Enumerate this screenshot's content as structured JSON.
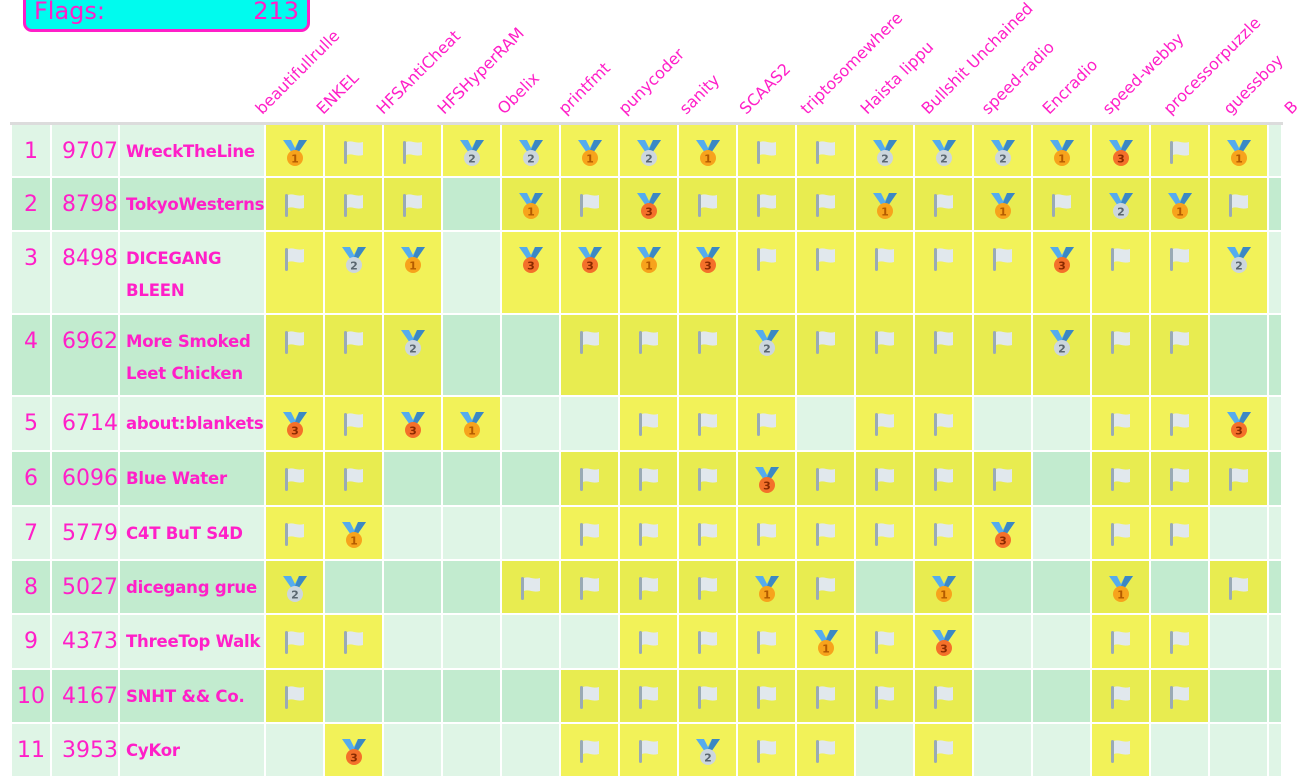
{
  "summary": {
    "flags_label": "Flags:",
    "flags_count": "213"
  },
  "colors": {
    "accent": "#ff1fc8",
    "box": "#00fbee",
    "row_odd": "#dff5e6",
    "row_even": "#c2ebcf",
    "solved_odd": "#f2f259",
    "solved_even": "#e8ec50"
  },
  "challenges": [
    "beautifullrulle",
    "ENKEL",
    "HFSAntiCheat",
    "HFSHyperRAM",
    "Obelix",
    "printfmt",
    "punycoder",
    "sanity",
    "SCAAS2",
    "triptosomewhere",
    "Haista lippu",
    "Bullshit Unchained",
    "speed-radio",
    "Encradio",
    "speed-webby",
    "processorpuzzle",
    "guessboy",
    "B"
  ],
  "legend": {
    "1": "gold-medal-icon",
    "2": "silver-medal-icon",
    "3": "bronze-medal-icon",
    "F": "flag-icon",
    "": "unsolved"
  },
  "teams": [
    {
      "rank": "1",
      "score": "9707",
      "name": "WreckTheLine",
      "solves": [
        "1",
        "F",
        "F",
        "2",
        "2",
        "1",
        "2",
        "1",
        "F",
        "F",
        "2",
        "2",
        "2",
        "1",
        "3",
        "F",
        "1",
        ""
      ]
    },
    {
      "rank": "2",
      "score": "8798",
      "name": "TokyoWesterns",
      "solves": [
        "F",
        "F",
        "F",
        "",
        "1",
        "F",
        "3",
        "F",
        "F",
        "F",
        "1",
        "F",
        "1",
        "F",
        "2",
        "1",
        "F",
        ""
      ]
    },
    {
      "rank": "3",
      "score": "8498",
      "name": "DICEGANG BLEEN",
      "solves": [
        "F",
        "2",
        "1",
        "",
        "3",
        "3",
        "1",
        "3",
        "F",
        "F",
        "F",
        "F",
        "F",
        "3",
        "F",
        "F",
        "2",
        ""
      ]
    },
    {
      "rank": "4",
      "score": "6962",
      "name": "More Smoked Leet Chicken",
      "solves": [
        "F",
        "F",
        "2",
        "",
        "",
        "F",
        "F",
        "F",
        "2",
        "F",
        "F",
        "F",
        "F",
        "2",
        "F",
        "F",
        "",
        ""
      ]
    },
    {
      "rank": "5",
      "score": "6714",
      "name": "about:blankets",
      "solves": [
        "3",
        "F",
        "3",
        "1",
        "",
        "",
        "F",
        "F",
        "F",
        "",
        "F",
        "F",
        "",
        "",
        "F",
        "F",
        "3",
        ""
      ]
    },
    {
      "rank": "6",
      "score": "6096",
      "name": "Blue Water",
      "solves": [
        "F",
        "F",
        "",
        "",
        "",
        "F",
        "F",
        "F",
        "3",
        "F",
        "F",
        "F",
        "F",
        "",
        "F",
        "F",
        "F",
        ""
      ]
    },
    {
      "rank": "7",
      "score": "5779",
      "name": "C4T BuT S4D",
      "solves": [
        "F",
        "1",
        "",
        "",
        "",
        "F",
        "F",
        "F",
        "F",
        "F",
        "F",
        "F",
        "3",
        "",
        "F",
        "F",
        "",
        ""
      ]
    },
    {
      "rank": "8",
      "score": "5027",
      "name": "dicegang grue",
      "solves": [
        "2",
        "",
        "",
        "",
        "F",
        "F",
        "F",
        "F",
        "1",
        "F",
        "",
        "1",
        "",
        "",
        "1",
        "",
        "F",
        ""
      ]
    },
    {
      "rank": "9",
      "score": "4373",
      "name": "ThreeTop Walk",
      "solves": [
        "F",
        "F",
        "",
        "",
        "",
        "",
        "F",
        "F",
        "F",
        "1",
        "F",
        "3",
        "",
        "",
        "F",
        "F",
        "",
        ""
      ]
    },
    {
      "rank": "10",
      "score": "4167",
      "name": "SNHT && Co.",
      "solves": [
        "F",
        "",
        "",
        "",
        "",
        "F",
        "F",
        "F",
        "F",
        "F",
        "F",
        "F",
        "",
        "",
        "F",
        "F",
        "",
        ""
      ]
    },
    {
      "rank": "11",
      "score": "3953",
      "name": "CyKor",
      "solves": [
        "",
        "3",
        "",
        "",
        "",
        "F",
        "F",
        "2",
        "F",
        "F",
        "",
        "F",
        "",
        "",
        "F",
        "",
        "",
        ""
      ]
    }
  ]
}
